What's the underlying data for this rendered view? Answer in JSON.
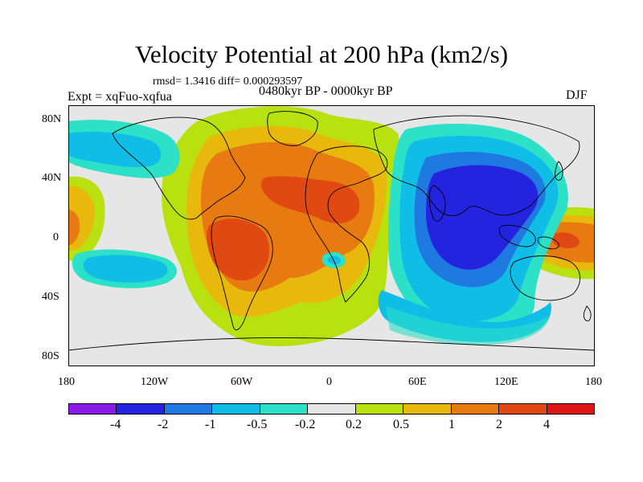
{
  "title": "Velocity Potential at 200 hPa (km2/s)",
  "stats": "rmsd= 1.3416  diff= 0.000293597",
  "experiment": "Expt = xqFuo-xqfua",
  "period": "0480kyr BP - 0000kyr BP",
  "season": "DJF",
  "axes": {
    "x_ticks": [
      "180",
      "120W",
      "60W",
      "0",
      "60E",
      "120E",
      "180"
    ],
    "y_ticks": [
      "80N",
      "40N",
      "0",
      "40S",
      "80S"
    ]
  },
  "colorbar": {
    "labels": [
      "-4",
      "-2",
      "-1",
      "-0.5",
      "-0.2",
      "0.2",
      "0.5",
      "1",
      "2",
      "4"
    ],
    "colors": [
      "#8a1be6",
      "#2424e0",
      "#1e7ae0",
      "#10bde6",
      "#2de0c8",
      "#e6e6e6",
      "#b9e00f",
      "#e8b80c",
      "#e87a12",
      "#e04a12",
      "#e01616"
    ]
  },
  "colors": {
    "background": "#e6e6e6",
    "coast": "#000000"
  }
}
